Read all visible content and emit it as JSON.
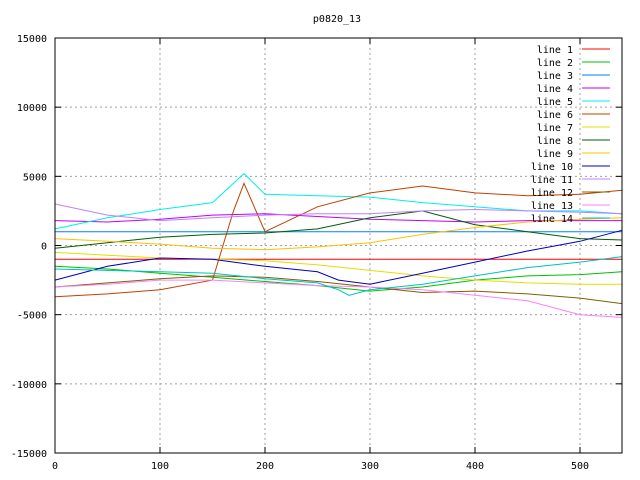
{
  "chart_data": {
    "type": "line",
    "title": "p0820_13",
    "xlabel": "",
    "ylabel": "",
    "xlim": [
      0,
      540
    ],
    "ylim": [
      -15000,
      15000
    ],
    "x_ticks": [
      0,
      100,
      200,
      300,
      400,
      500
    ],
    "y_ticks": [
      -15000,
      -10000,
      -5000,
      0,
      5000,
      10000,
      15000
    ],
    "grid": true,
    "legend_position": "top-right",
    "series": [
      {
        "name": "line 1",
        "color": "#ff0000",
        "x": [
          0,
          100,
          200,
          300,
          400,
          500,
          540
        ],
        "y": [
          -1000,
          -1000,
          -1000,
          -1000,
          -1000,
          -1000,
          -1000
        ]
      },
      {
        "name": "line 2",
        "color": "#00c000",
        "x": [
          0,
          50,
          100,
          150,
          200,
          250,
          300,
          350,
          400,
          450,
          500,
          540
        ],
        "y": [
          -1500,
          -1700,
          -2000,
          -2300,
          -2600,
          -2900,
          -3300,
          -3000,
          -2500,
          -2200,
          -2100,
          -1900
        ]
      },
      {
        "name": "line 3",
        "color": "#0080ff",
        "x": [
          0,
          100,
          200,
          300,
          400,
          500,
          540
        ],
        "y": [
          1000,
          1000,
          1000,
          1000,
          1000,
          1000,
          1000
        ]
      },
      {
        "name": "line 4",
        "color": "#c000ff",
        "x": [
          0,
          50,
          100,
          150,
          200,
          250,
          300,
          350,
          400,
          450,
          500,
          540
        ],
        "y": [
          1800,
          1700,
          1900,
          2200,
          2300,
          2100,
          1900,
          1800,
          1700,
          1800,
          1800,
          1800
        ]
      },
      {
        "name": "line 5",
        "color": "#00eeee",
        "x": [
          0,
          50,
          100,
          150,
          180,
          200,
          250,
          300,
          350,
          400,
          450,
          500,
          540
        ],
        "y": [
          1200,
          2000,
          2600,
          3100,
          5200,
          3700,
          3600,
          3500,
          3100,
          2800,
          2500,
          2500,
          2300
        ]
      },
      {
        "name": "line 6",
        "color": "#c04000",
        "x": [
          0,
          50,
          100,
          150,
          170,
          180,
          200,
          250,
          300,
          350,
          400,
          450,
          500,
          540
        ],
        "y": [
          -3700,
          -3500,
          -3200,
          -2500,
          2500,
          4500,
          1000,
          2800,
          3800,
          4300,
          3800,
          3600,
          3700,
          4000
        ]
      },
      {
        "name": "line 7",
        "color": "#e0e000",
        "x": [
          0,
          50,
          100,
          150,
          200,
          250,
          300,
          350,
          400,
          450,
          500,
          540
        ],
        "y": [
          -500,
          -700,
          -900,
          -1000,
          -1100,
          -1400,
          -1800,
          -2200,
          -2500,
          -2700,
          -2800,
          -2800
        ]
      },
      {
        "name": "line 8",
        "color": "#006000",
        "x": [
          0,
          50,
          100,
          150,
          200,
          250,
          300,
          350,
          400,
          450,
          500,
          540
        ],
        "y": [
          -200,
          200,
          600,
          800,
          900,
          1200,
          2000,
          2500,
          1500,
          1000,
          500,
          400
        ]
      },
      {
        "name": "line 9",
        "color": "#ffc000",
        "x": [
          0,
          50,
          100,
          150,
          200,
          250,
          300,
          350,
          400,
          450,
          500,
          540
        ],
        "y": [
          500,
          300,
          100,
          -200,
          -300,
          -100,
          200,
          800,
          1300,
          1700,
          1900,
          2000
        ]
      },
      {
        "name": "line 10",
        "color": "#0000c0",
        "x": [
          0,
          50,
          100,
          150,
          200,
          250,
          270,
          300,
          350,
          400,
          450,
          500,
          540
        ],
        "y": [
          -2500,
          -1500,
          -900,
          -1000,
          -1500,
          -1900,
          -2500,
          -2800,
          -2000,
          -1200,
          -400,
          300,
          1100
        ]
      },
      {
        "name": "line 11",
        "color": "#c080ff",
        "x": [
          0,
          50,
          100,
          150,
          200,
          250,
          300,
          350,
          400,
          450,
          500,
          540
        ],
        "y": [
          3000,
          2200,
          1800,
          2000,
          2200,
          2300,
          2300,
          2500,
          2600,
          2500,
          2400,
          2300
        ]
      },
      {
        "name": "line 12",
        "color": "#806000",
        "x": [
          0,
          50,
          100,
          150,
          200,
          250,
          300,
          350,
          400,
          450,
          500,
          540
        ],
        "y": [
          -3000,
          -2700,
          -2400,
          -2200,
          -2300,
          -2600,
          -3000,
          -3400,
          -3300,
          -3500,
          -3800,
          -4200
        ]
      },
      {
        "name": "line 13",
        "color": "#ff80ff",
        "x": [
          0,
          50,
          100,
          150,
          200,
          250,
          300,
          350,
          400,
          450,
          500,
          540
        ],
        "y": [
          -3000,
          -2800,
          -2500,
          -2500,
          -2700,
          -2900,
          -3000,
          -3200,
          -3600,
          -4000,
          -5000,
          -5200
        ]
      },
      {
        "name": "line 14",
        "color": "#00c0c0",
        "x": [
          0,
          50,
          100,
          150,
          200,
          250,
          270,
          280,
          300,
          350,
          400,
          450,
          500,
          540
        ],
        "y": [
          -1700,
          -1800,
          -1900,
          -2000,
          -2400,
          -2700,
          -3200,
          -3600,
          -3200,
          -2800,
          -2200,
          -1600,
          -1200,
          -800
        ]
      }
    ]
  }
}
